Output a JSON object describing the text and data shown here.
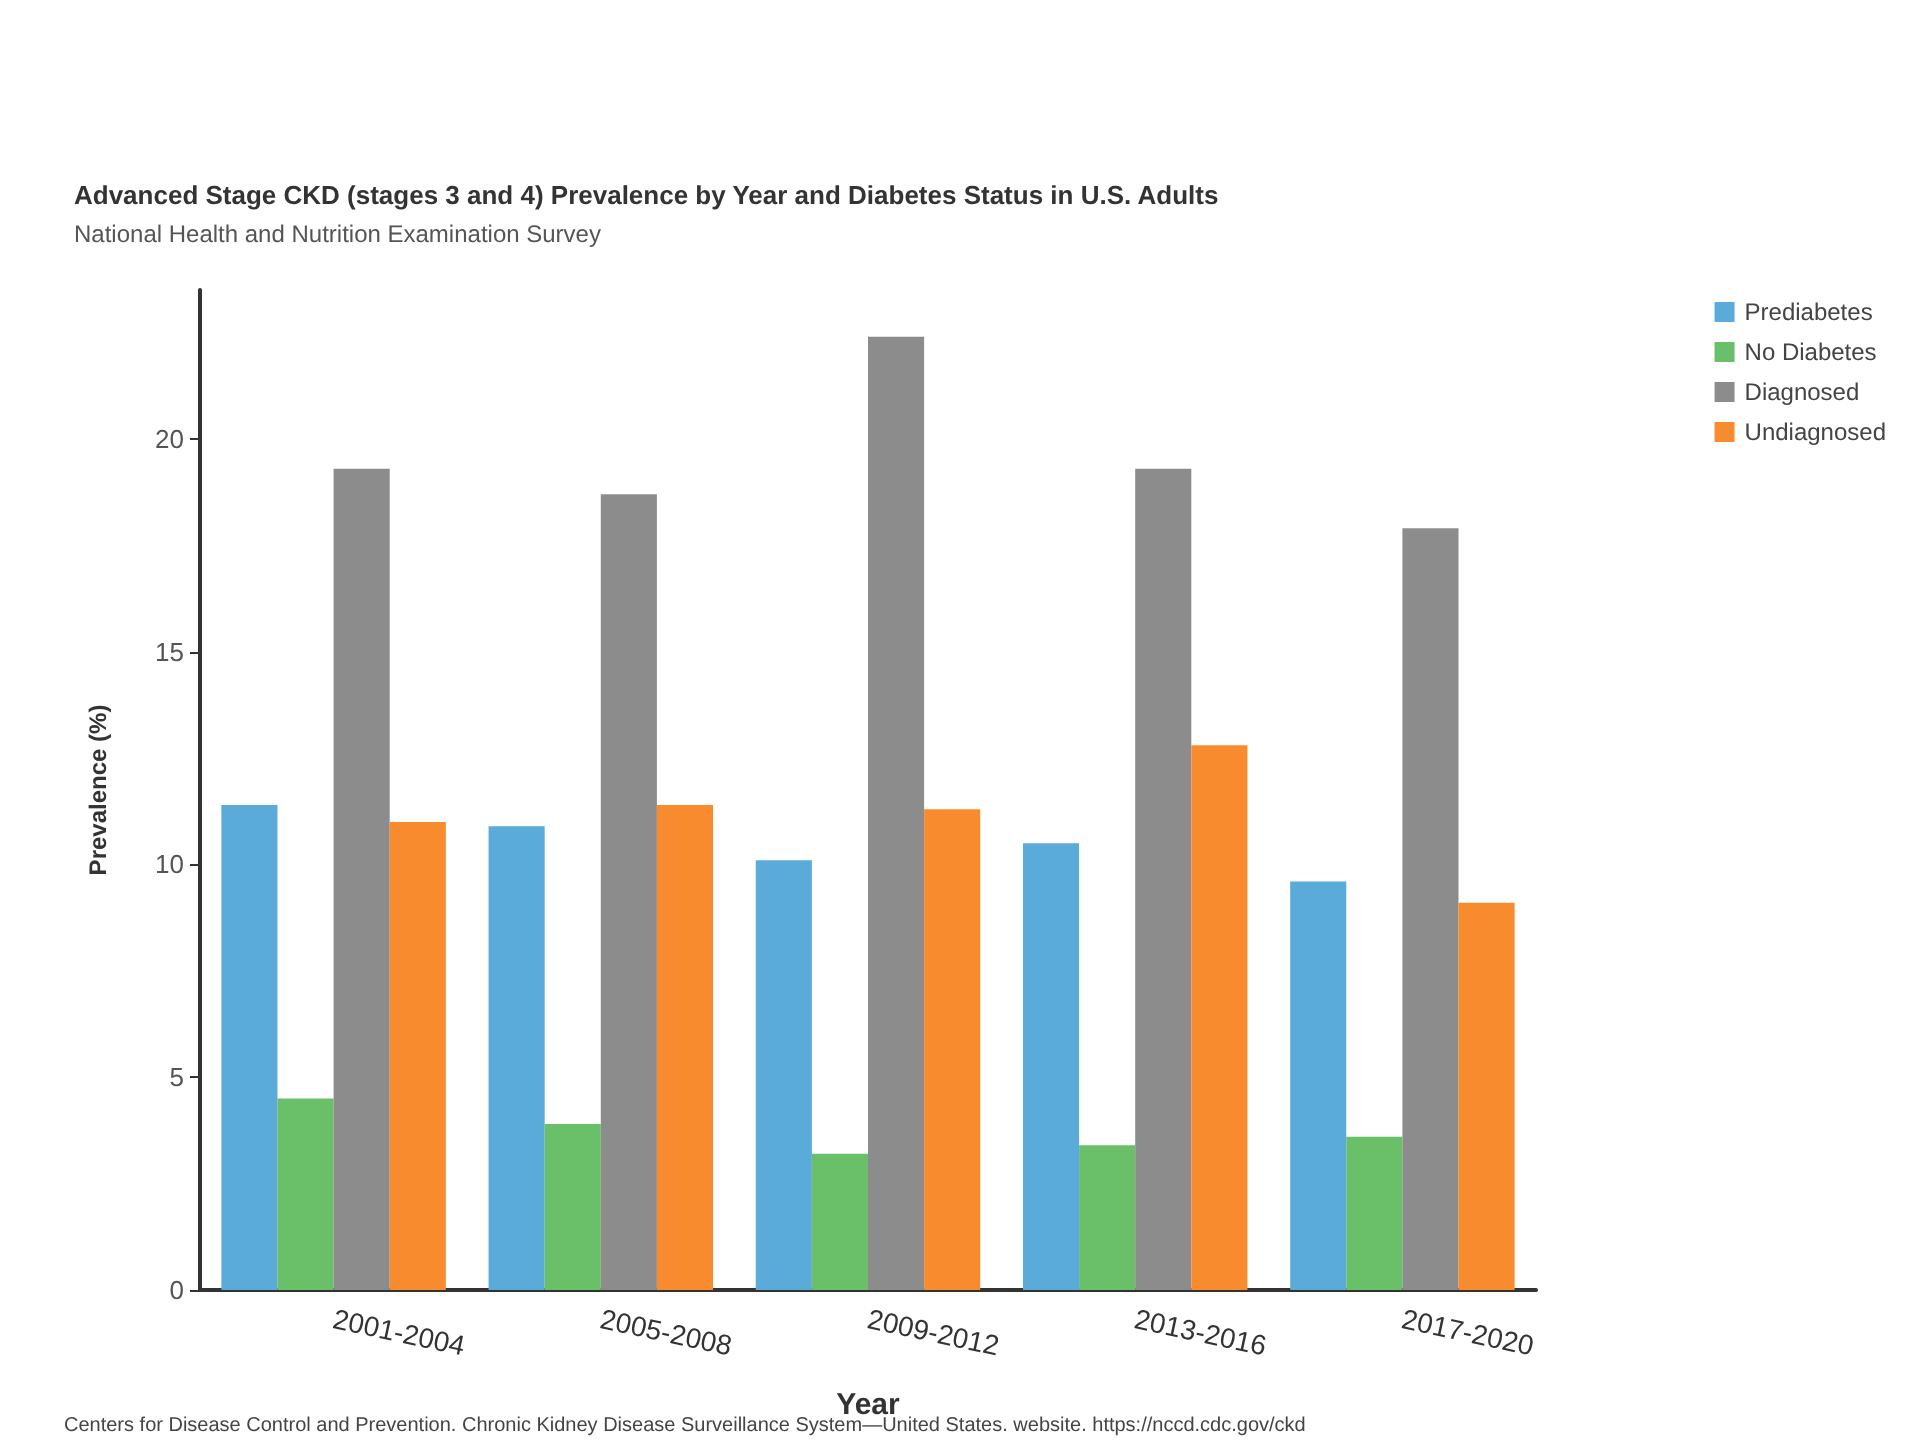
{
  "chart_data": {
    "type": "bar",
    "title": "Advanced Stage CKD (stages 3 and 4) Prevalence by Year and Diabetes Status in U.S. Adults",
    "subtitle": "National Health and Nutrition Examination Survey",
    "xlabel": "Year",
    "ylabel": "Prevalence (%)",
    "categories": [
      "2001-2004",
      "2005-2008",
      "2009-2012",
      "2013-2016",
      "2017-2020"
    ],
    "series": [
      {
        "name": "Prediabetes",
        "color": "#5aabd9",
        "values": [
          11.4,
          10.9,
          10.1,
          10.5,
          9.6
        ]
      },
      {
        "name": "No Diabetes",
        "color": "#6abf69",
        "values": [
          4.5,
          3.9,
          3.2,
          3.4,
          3.6
        ]
      },
      {
        "name": "Diagnosed",
        "color": "#8c8c8c",
        "values": [
          19.3,
          18.7,
          22.4,
          19.3,
          17.9
        ]
      },
      {
        "name": "Undiagnosed",
        "color": "#f98b2f",
        "values": [
          11.0,
          11.4,
          11.3,
          12.8,
          9.1
        ]
      }
    ],
    "ylim": [
      0,
      23.5
    ],
    "yticks": [
      0,
      5,
      10,
      15,
      20
    ],
    "grid": false,
    "legend": "top right",
    "annotations": [
      "Centers for Disease Control and Prevention. Chronic Kidney Disease Surveillance System—United States. website. https://nccd.cdc.gov/ckd"
    ]
  }
}
